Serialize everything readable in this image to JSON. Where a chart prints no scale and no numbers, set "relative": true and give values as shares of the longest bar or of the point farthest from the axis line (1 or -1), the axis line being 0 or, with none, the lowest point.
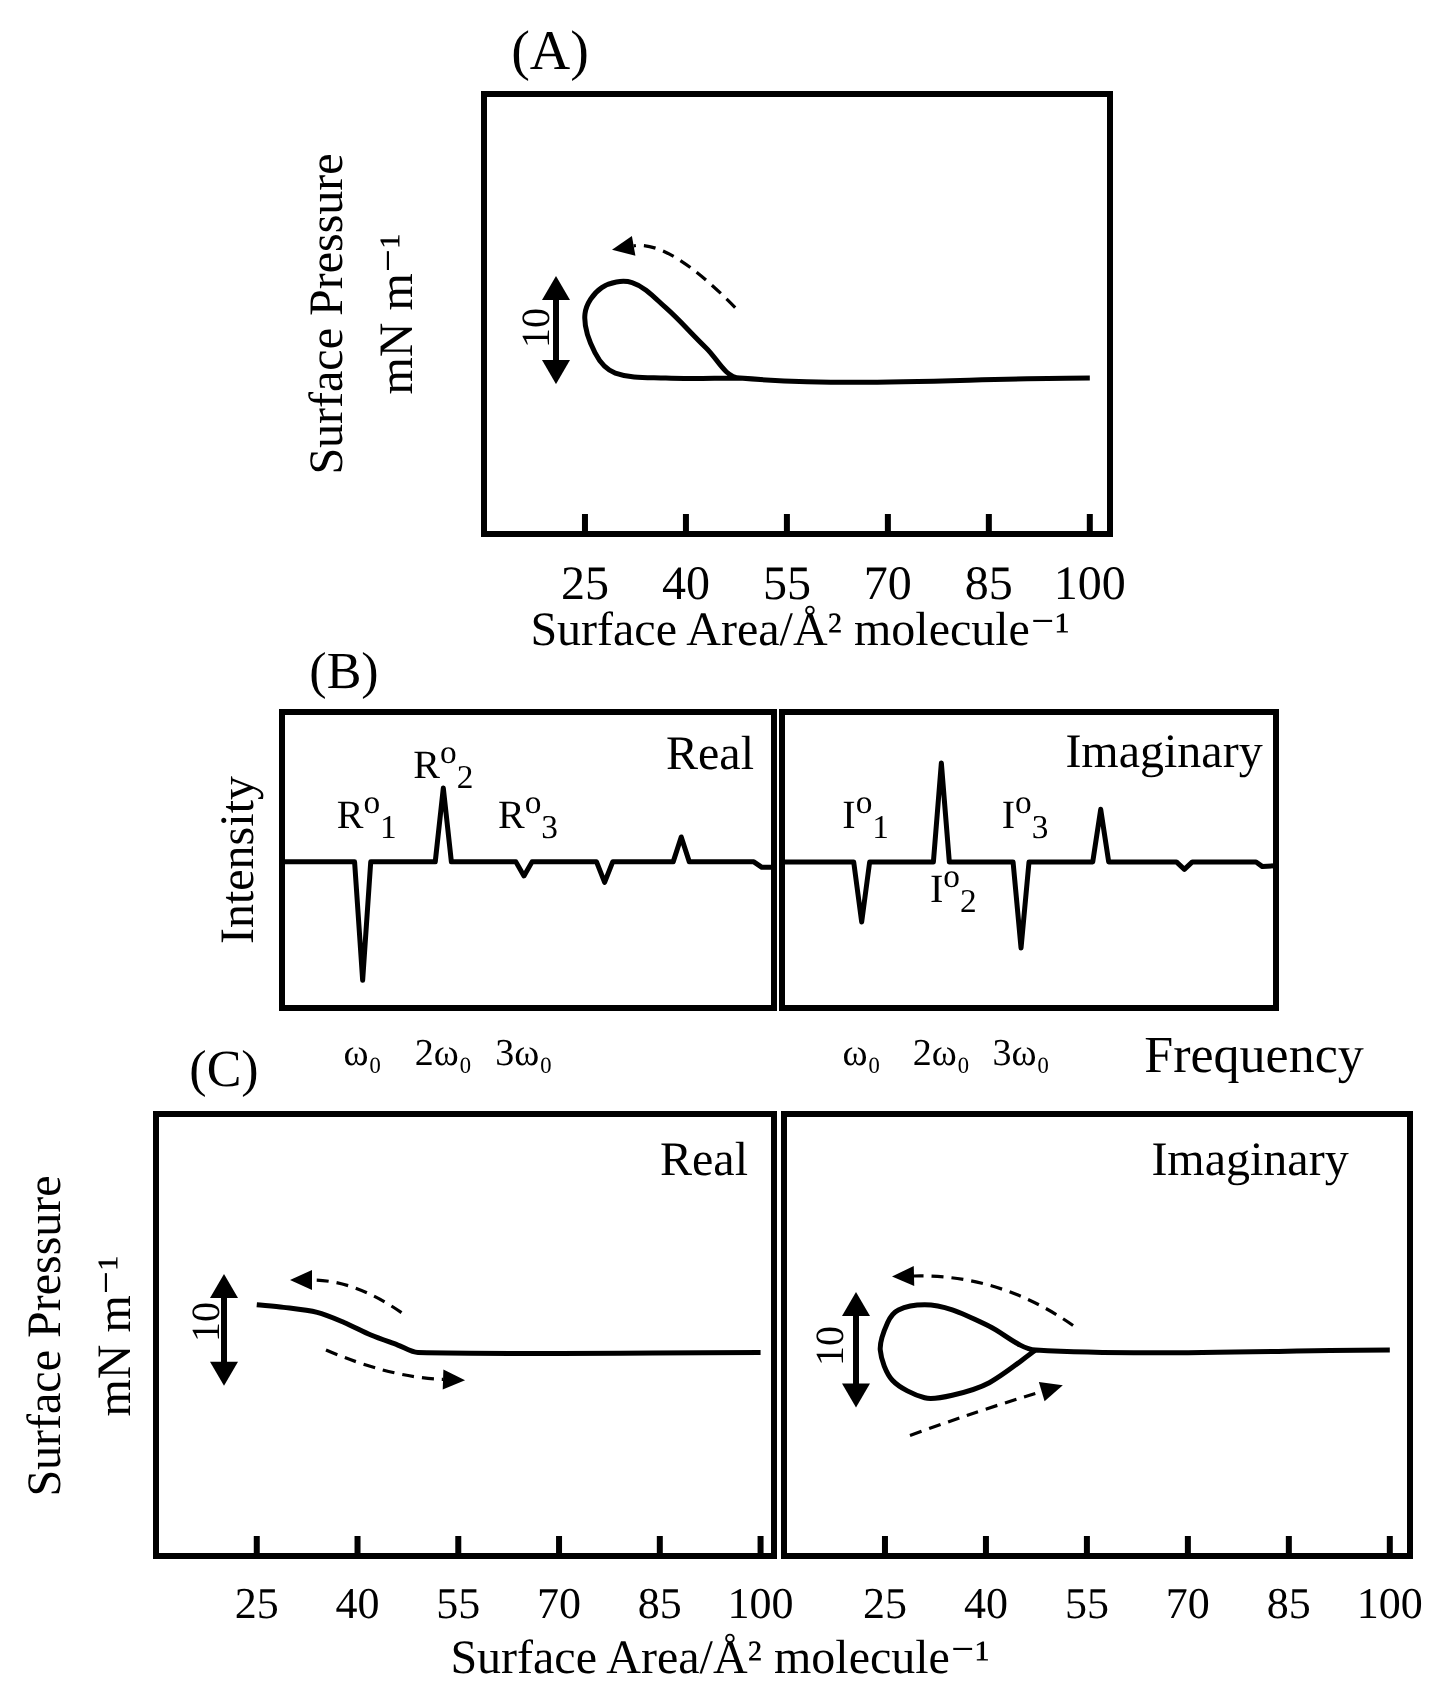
{
  "chart_data": [
    {
      "type": "line",
      "title": "(A)",
      "xlabel": "Surface Area/Å² molecule⁻¹",
      "ylabel": "Surface Pressure\nmN m⁻¹",
      "relative": true,
      "xlim": [
        10,
        103
      ],
      "xticks": [
        25,
        40,
        55,
        70,
        85,
        100
      ],
      "annotations": [
        "10"
      ],
      "series": [
        {
          "color": "#000000",
          "x": [
            100,
            48,
            43,
            37,
            32,
            27.5,
            25,
            26.5,
            29.5,
            37,
            48
          ],
          "values": [
            0.62,
            0.62,
            0.74,
            0.9,
            1,
            0.98,
            0.875,
            0.72,
            0.64,
            0.62,
            0.62
          ]
        }
      ]
    },
    {
      "type": "line",
      "title": "Real",
      "ylabel": "Intensity",
      "relative": true,
      "xlim": [
        0,
        6.1
      ],
      "xticks": [
        {
          "value": 1,
          "label": "ω₀"
        },
        {
          "value": 2,
          "label": "2ω₀"
        },
        {
          "value": 3,
          "label": "3ω₀"
        }
      ],
      "annotations": [
        "(B)",
        "R$^{o}$$_{1}$",
        "R$^{o}$$_{2}$",
        "R$^{o}$$_{3}$"
      ],
      "series": [
        {
          "color": "#000000",
          "x": [
            0,
            0.9,
            1,
            1.1,
            1.9,
            2,
            2.1,
            2.9,
            3,
            3.1,
            3.9,
            4,
            4.1,
            4.85,
            4.95,
            5.05,
            5.85,
            5.95,
            6.1
          ],
          "values": [
            0.664,
            0.664,
            0.126,
            0.664,
            0.664,
            1,
            0.664,
            0.664,
            0.6,
            0.664,
            0.664,
            0.571,
            0.664,
            0.664,
            0.777,
            0.664,
            0.664,
            0.639,
            0.639
          ]
        }
      ]
    },
    {
      "type": "line",
      "title": "Imaginary",
      "xlabel": "Frequency",
      "relative": true,
      "xlim": [
        0,
        6.2
      ],
      "xticks": [
        {
          "value": 1,
          "label": "ω₀"
        },
        {
          "value": 2,
          "label": "2ω₀"
        },
        {
          "value": 3,
          "label": "3ω₀"
        }
      ],
      "annotations": [
        "I$^{o}$$_{1}$",
        "I$^{o}$$_{2}$",
        "I$^{o}$$_{3}$"
      ],
      "series": [
        {
          "color": "#000000",
          "x": [
            0,
            0.9,
            1,
            1.1,
            1.9,
            2,
            2.1,
            2.9,
            3,
            3.1,
            3.9,
            4,
            4.1,
            4.95,
            5.05,
            5.15,
            5.95,
            6.03,
            6.2
          ],
          "values": [
            0.596,
            0.596,
            0.351,
            0.596,
            0.596,
            1,
            0.596,
            0.596,
            0.245,
            0.596,
            0.596,
            0.811,
            0.596,
            0.596,
            0.566,
            0.596,
            0.596,
            0.577,
            0.581
          ]
        }
      ]
    },
    {
      "type": "line",
      "title": "Real",
      "xlabel": "Surface Area/Å² molecule⁻¹",
      "ylabel": "Surface Pressure\nmN m⁻¹",
      "relative": true,
      "xlim": [
        10,
        102
      ],
      "xticks": [
        25,
        40,
        55,
        70,
        85,
        100
      ],
      "annotations": [
        "(C)",
        "10"
      ],
      "series": [
        {
          "color": "#000000",
          "x": [
            25,
            29,
            34,
            38,
            42,
            46,
            49,
            100
          ],
          "values": [
            1,
            0.99,
            0.97,
            0.93,
            0.88,
            0.84,
            0.81,
            0.81
          ]
        }
      ]
    },
    {
      "type": "line",
      "title": "Imaginary",
      "relative": true,
      "xlim": [
        10,
        103
      ],
      "xticks": [
        25,
        40,
        55,
        70,
        85,
        100
      ],
      "annotations": [
        "10"
      ],
      "series": [
        {
          "color": "#000000",
          "x": [
            100,
            47.4,
            40.5,
            35,
            30.9,
            27,
            25.4,
            24.3,
            26.1,
            30.9,
            35,
            40.5,
            47.4
          ],
          "values": [
            0.82,
            0.82,
            0.915,
            0.98,
            1,
            0.98,
            0.93,
            0.82,
            0.7,
            0.63,
            0.64,
            0.69,
            0.82
          ]
        }
      ]
    }
  ]
}
